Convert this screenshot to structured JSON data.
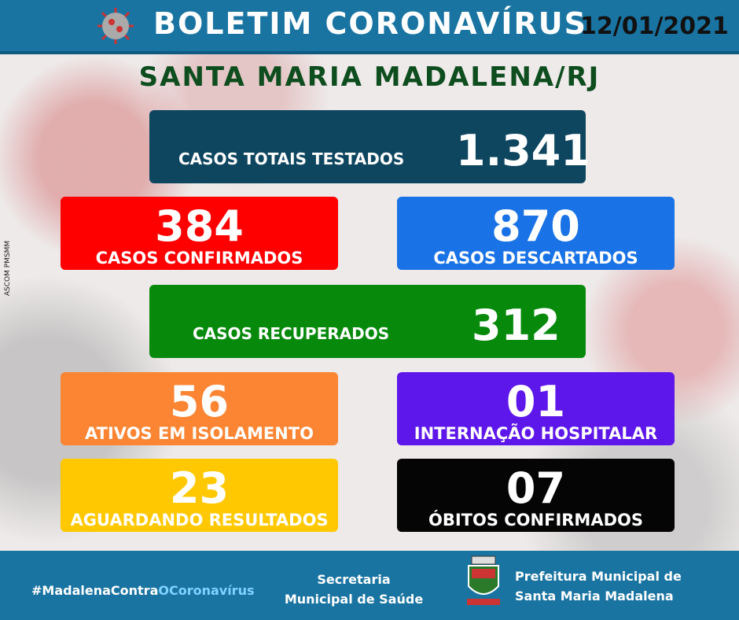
{
  "header": {
    "title": "BOLETIM CORONAVÍRUS",
    "date": "12/01/2021"
  },
  "subtitle": "SANTA MARIA MADALENA/RJ",
  "credit": "ASCOM PMSMM",
  "cards": [
    {
      "label": "CASOS TOTAIS TESTADOS",
      "value": "1.341"
    },
    {
      "label": "CASOS CONFIRMADOS",
      "value": "384"
    },
    {
      "label": "CASOS DESCARTADOS",
      "value": "870"
    },
    {
      "label": "CASOS RECUPERADOS",
      "value": "312"
    },
    {
      "label": "ATIVOS EM ISOLAMENTO",
      "value": "56"
    },
    {
      "label": "INTERNAÇÃO HOSPITALAR",
      "value": "01"
    },
    {
      "label": "AGUARDANDO RESULTADOS",
      "value": "23"
    },
    {
      "label": "ÓBITOS CONFIRMADOS",
      "value": "07"
    }
  ],
  "footer": {
    "hashtag": [
      "#MadalenaContra",
      "OCoronavírus"
    ],
    "secretaria": [
      "Secretaria",
      "Municipal de Saúde"
    ],
    "prefeitura": [
      "Prefeitura Municipal de",
      "Santa Maria Madalena"
    ]
  }
}
